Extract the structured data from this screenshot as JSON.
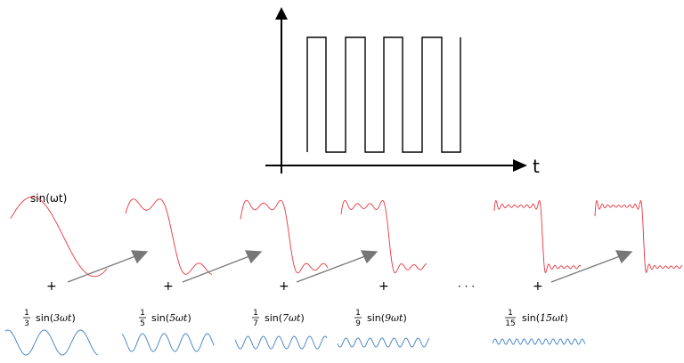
{
  "axis": {
    "time_label": "t"
  },
  "partial_sums": {
    "first_label": "sin(ωt)",
    "plus_sign": "+",
    "ellipsis": "· · ·",
    "term_counts": [
      1,
      2,
      3,
      4,
      8,
      9
    ]
  },
  "components": [
    {
      "coef_num": "1",
      "coef_den": "3",
      "func": "sin(",
      "arg": "3ωt",
      "close": ")",
      "harmonic": 3
    },
    {
      "coef_num": "1",
      "coef_den": "5",
      "func": "sin(",
      "arg": "5ωt",
      "close": ")",
      "harmonic": 5
    },
    {
      "coef_num": "1",
      "coef_den": "7",
      "func": "sin(",
      "arg": "7ωt",
      "close": ")",
      "harmonic": 7
    },
    {
      "coef_num": "1",
      "coef_den": "9",
      "func": "sin(",
      "arg": "9ωt",
      "close": ")",
      "harmonic": 9
    },
    {
      "coef_num": "1",
      "coef_den": "15",
      "func": "sin(",
      "arg": "15ωt",
      "close": ")",
      "harmonic": 15
    }
  ],
  "colors": {
    "square_wave": "#000000",
    "partial_sum": "#e8343f",
    "harmonic": "#3b7dc4",
    "arrow": "#777777"
  }
}
